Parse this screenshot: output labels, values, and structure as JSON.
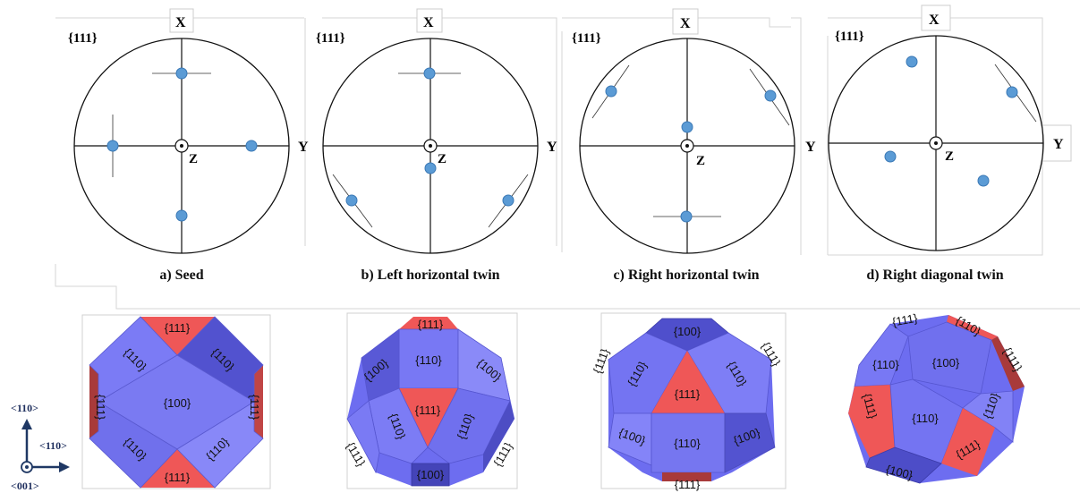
{
  "colors": {
    "face_blue": "#7878f4",
    "face_blue_dark": "#4f4fd0",
    "face_blue_light": "#8c8cf8",
    "face_red": "#ef5757",
    "face_red_dark": "#a83a3a",
    "pole_blue": "#5b9bd5",
    "axis_navy": "#1f3864"
  },
  "stereonets": [
    {
      "family": "{111}",
      "x_label": "X",
      "y_label": "Y",
      "z_label": "Z",
      "caption": "a) Seed"
    },
    {
      "family": "{111}",
      "x_label": "X",
      "y_label": "Y",
      "z_label": "Z",
      "caption": "b) Left horizontal twin"
    },
    {
      "family": "{111}",
      "x_label": "X",
      "y_label": "Y",
      "z_label": "Z",
      "caption": "c) Right horizontal twin"
    },
    {
      "family": "{111}",
      "x_label": "X",
      "y_label": "Y",
      "z_label": "Z",
      "caption": "d) Right diagonal twin"
    }
  ],
  "axes_indicator": {
    "up": "<110>",
    "right": "<110>",
    "out": "<001>"
  },
  "crystals": [
    {
      "faces": [
        "{111}",
        "{110}",
        "{110}",
        "{111}",
        "{100}",
        "{111}",
        "{110}",
        "{110}",
        "{111}"
      ]
    },
    {
      "faces": [
        "{111}",
        "{110}",
        "{100}",
        "{100}",
        "{111}",
        "{110}",
        "{110}",
        "{111}",
        "{111}",
        "{100}"
      ]
    },
    {
      "faces": [
        "{100}",
        "{110}",
        "{110}",
        "{111}",
        "{111}",
        "{111}",
        "{100}",
        "{110}",
        "{100}",
        "{111}"
      ]
    },
    {
      "faces": [
        "{111}",
        "{110}",
        "{111}",
        "{110}",
        "{100}",
        "{111}",
        "{110}",
        "{110}",
        "{111}",
        "{100}"
      ]
    }
  ]
}
